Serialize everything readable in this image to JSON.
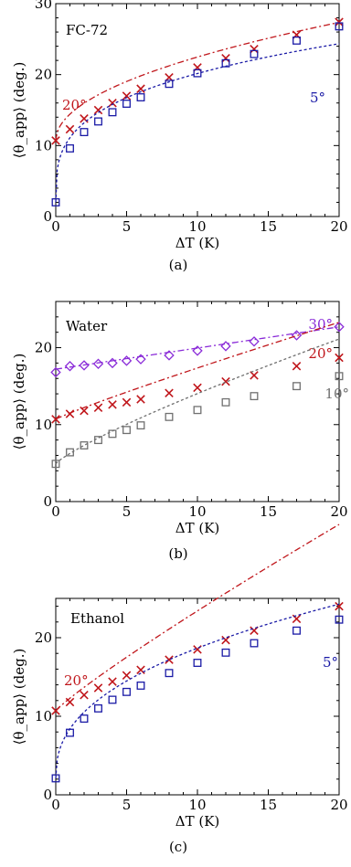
{
  "chart_data": [
    {
      "type": "scatter",
      "panel_label": "(a)",
      "fluid_label": "FC-72",
      "xlabel": "ΔT (K)",
      "ylabel": "⟨θ_app⟩ (deg.)",
      "xlim": [
        0,
        20
      ],
      "ylim": [
        0,
        30
      ],
      "xticks": [
        "0",
        "5",
        "10",
        "15",
        "20"
      ],
      "yticks": [
        "0",
        "10",
        "20",
        "30"
      ],
      "series": [
        {
          "name": "20°",
          "marker": "x",
          "color": "#c0161b",
          "x": [
            0,
            1,
            2,
            3,
            4,
            5,
            6,
            8,
            10,
            12,
            14,
            17,
            20
          ],
          "y": [
            10.7,
            12.3,
            13.8,
            15.0,
            16.0,
            17.0,
            18.0,
            19.6,
            21.0,
            22.3,
            23.6,
            25.6,
            27.4
          ],
          "fit": {
            "a": 10.7,
            "b": 3.725,
            "p": 0.5
          }
        },
        {
          "name": "5°",
          "marker": "square",
          "color": "#1a1aa6",
          "x": [
            0,
            1,
            2,
            3,
            4,
            5,
            6,
            8,
            10,
            12,
            14,
            17,
            20
          ],
          "y": [
            2.0,
            9.6,
            11.9,
            13.4,
            14.7,
            15.9,
            16.8,
            18.7,
            20.2,
            21.6,
            22.9,
            24.8,
            26.8
          ],
          "fit": {
            "a": 2.0,
            "b": 9.1,
            "p": 0.3
          }
        }
      ]
    },
    {
      "type": "scatter",
      "panel_label": "(b)",
      "fluid_label": "Water",
      "xlabel": "ΔT (K)",
      "ylabel": "⟨θ_app⟩ (deg.)",
      "xlim": [
        0,
        20
      ],
      "ylim": [
        0,
        26
      ],
      "xticks": [
        "0",
        "5",
        "10",
        "15",
        "20"
      ],
      "yticks": [
        "0",
        "10",
        "20"
      ],
      "series": [
        {
          "name": "30°",
          "marker": "diamond",
          "color": "#8a2bd8",
          "x": [
            0,
            1,
            2,
            3,
            4,
            5,
            6,
            8,
            10,
            12,
            14,
            17,
            20
          ],
          "y": [
            16.8,
            17.6,
            17.7,
            17.9,
            18.0,
            18.3,
            18.5,
            19.0,
            19.6,
            20.2,
            20.8,
            21.6,
            22.7
          ],
          "fit": {
            "a": 17.2,
            "b": 0.275,
            "p": 1.0
          }
        },
        {
          "name": "20°",
          "marker": "x",
          "color": "#c0161b",
          "x": [
            0,
            1,
            2,
            3,
            4,
            5,
            6,
            8,
            10,
            12,
            14,
            17,
            20
          ],
          "y": [
            10.7,
            11.4,
            11.8,
            12.2,
            12.6,
            12.9,
            13.3,
            14.1,
            14.8,
            15.6,
            16.4,
            17.6,
            18.7
          ],
          "fit": {
            "a": 10.7,
            "b": 0.8,
            "p": 0.92
          }
        },
        {
          "name": "10°",
          "marker": "square",
          "color": "#707070",
          "x": [
            0,
            1,
            2,
            3,
            4,
            5,
            6,
            8,
            10,
            12,
            14,
            17,
            20
          ],
          "y": [
            4.9,
            6.4,
            7.3,
            8.0,
            8.8,
            9.3,
            9.9,
            11.0,
            11.9,
            12.9,
            13.7,
            15.0,
            16.3
          ],
          "fit": {
            "a": 4.9,
            "b": 1.35,
            "p": 0.83
          }
        }
      ]
    },
    {
      "type": "scatter",
      "panel_label": "(c)",
      "fluid_label": "Ethanol",
      "xlabel": "ΔT (K)",
      "ylabel": "⟨θ_app⟩ (deg.)",
      "xlim": [
        0,
        20
      ],
      "ylim": [
        0,
        25
      ],
      "xticks": [
        "0",
        "5",
        "10",
        "15",
        "20"
      ],
      "yticks": [
        "0",
        "10",
        "20"
      ],
      "series": [
        {
          "name": "20°",
          "marker": "x",
          "color": "#c0161b",
          "x": [
            0,
            1,
            2,
            3,
            4,
            5,
            6,
            8,
            10,
            12,
            14,
            17,
            20
          ],
          "y": [
            10.7,
            11.8,
            12.7,
            13.6,
            14.4,
            15.2,
            15.9,
            17.2,
            18.5,
            19.7,
            20.9,
            22.4,
            24.0
          ],
          "fit": {
            "a": 10.7,
            "b": 1.6,
            "p": 0.9
          }
        },
        {
          "name": "5°",
          "marker": "square",
          "color": "#1a1aa6",
          "x": [
            0,
            1,
            2,
            3,
            4,
            5,
            6,
            8,
            10,
            12,
            14,
            17,
            20
          ],
          "y": [
            2.1,
            7.9,
            9.7,
            11.0,
            12.1,
            13.1,
            13.9,
            15.5,
            16.8,
            18.1,
            19.3,
            20.9,
            22.3
          ],
          "fit": {
            "a": 2.1,
            "b": 6.3,
            "p": 0.42
          }
        }
      ]
    }
  ]
}
